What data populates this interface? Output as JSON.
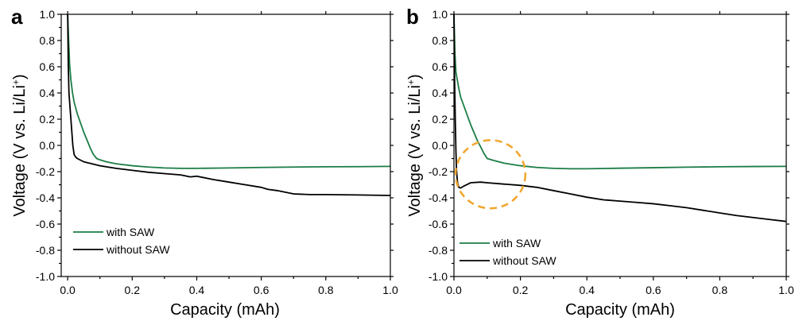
{
  "colors": {
    "with_saw": "#1b7d45",
    "without_saw": "#000000",
    "highlight": "#f0a830"
  },
  "chart_data": [
    {
      "panel": "a",
      "type": "line",
      "xlabel": "Capacity (mAh)",
      "ylabel_main": "Voltage (V vs. Li/Li",
      "ylabel_sup": "+",
      "ylabel_tail": ")",
      "xlim": [
        -0.02,
        1.0
      ],
      "ylim": [
        -1.0,
        1.0
      ],
      "xticks": [
        0.0,
        0.2,
        0.4,
        0.6,
        0.8,
        1.0
      ],
      "xtick_labels": [
        "0.0",
        "0.2",
        "0.4",
        "0.6",
        "0.8",
        "1.0"
      ],
      "yticks": [
        -1.0,
        -0.8,
        -0.6,
        -0.4,
        -0.2,
        0.0,
        0.2,
        0.4,
        0.6,
        0.8,
        1.0
      ],
      "ytick_labels": [
        "-1.0",
        "-0.8",
        "-0.6",
        "-0.4",
        "-0.2",
        "0.0",
        "0.2",
        "0.4",
        "0.6",
        "0.8",
        "1.0"
      ],
      "legend_position": "bottom-left",
      "series": [
        {
          "name": "with SAW",
          "color_key": "with_saw",
          "x": [
            0.0,
            0.003,
            0.006,
            0.01,
            0.015,
            0.02,
            0.03,
            0.04,
            0.05,
            0.06,
            0.07,
            0.08,
            0.09,
            0.1,
            0.12,
            0.15,
            0.2,
            0.25,
            0.3,
            0.35,
            0.4,
            0.5,
            0.6,
            0.7,
            0.8,
            0.9,
            1.0
          ],
          "y": [
            1.0,
            0.8,
            0.62,
            0.5,
            0.4,
            0.33,
            0.24,
            0.17,
            0.1,
            0.04,
            -0.02,
            -0.07,
            -0.1,
            -0.11,
            -0.125,
            -0.14,
            -0.155,
            -0.165,
            -0.172,
            -0.175,
            -0.175,
            -0.172,
            -0.168,
            -0.165,
            -0.163,
            -0.162,
            -0.16
          ]
        },
        {
          "name": "without SAW",
          "color_key": "without_saw",
          "x": [
            0.0,
            0.002,
            0.004,
            0.007,
            0.01,
            0.013,
            0.016,
            0.02,
            0.025,
            0.03,
            0.05,
            0.1,
            0.15,
            0.2,
            0.25,
            0.3,
            0.35,
            0.38,
            0.4,
            0.45,
            0.5,
            0.55,
            0.6,
            0.62,
            0.65,
            0.7,
            0.75,
            0.8,
            0.9,
            1.0
          ],
          "y": [
            1.0,
            0.6,
            0.4,
            0.3,
            0.2,
            0.1,
            0.0,
            -0.07,
            -0.09,
            -0.1,
            -0.125,
            -0.155,
            -0.175,
            -0.19,
            -0.205,
            -0.215,
            -0.225,
            -0.24,
            -0.235,
            -0.26,
            -0.28,
            -0.3,
            -0.32,
            -0.335,
            -0.345,
            -0.37,
            -0.375,
            -0.375,
            -0.378,
            -0.382
          ]
        }
      ]
    },
    {
      "panel": "b",
      "type": "line",
      "xlabel": "Capacity (mAh)",
      "ylabel_main": "Voltage (V vs. Li/Li",
      "ylabel_sup": "+",
      "ylabel_tail": ")",
      "xlim": [
        0.0,
        1.0
      ],
      "ylim": [
        -1.0,
        1.0
      ],
      "xticks": [
        0.0,
        0.2,
        0.4,
        0.6,
        0.8,
        1.0
      ],
      "xtick_labels": [
        "0.0",
        "0.2",
        "0.4",
        "0.6",
        "0.8",
        "1.0"
      ],
      "yticks": [
        -1.0,
        -0.8,
        -0.6,
        -0.4,
        -0.2,
        0.0,
        0.2,
        0.4,
        0.6,
        0.8,
        1.0
      ],
      "ytick_labels": [
        "-1.0",
        "-0.8",
        "-0.6",
        "-0.4",
        "-0.2",
        "0.0",
        "0.2",
        "0.4",
        "0.6",
        "0.8",
        "1.0"
      ],
      "legend_position": "bottom-left",
      "annotation": {
        "shape": "dashed-circle",
        "center": [
          0.11,
          -0.22
        ],
        "radius_x_data": 0.105,
        "radius_y_data": 0.26
      },
      "series": [
        {
          "name": "with SAW",
          "color_key": "with_saw",
          "x": [
            0.0,
            0.003,
            0.006,
            0.01,
            0.015,
            0.02,
            0.03,
            0.04,
            0.05,
            0.06,
            0.07,
            0.08,
            0.09,
            0.1,
            0.12,
            0.15,
            0.2,
            0.25,
            0.3,
            0.35,
            0.4,
            0.5,
            0.6,
            0.7,
            0.8,
            0.9,
            1.0
          ],
          "y": [
            1.0,
            0.7,
            0.56,
            0.5,
            0.43,
            0.37,
            0.3,
            0.23,
            0.16,
            0.1,
            0.04,
            -0.01,
            -0.06,
            -0.1,
            -0.115,
            -0.135,
            -0.155,
            -0.168,
            -0.175,
            -0.178,
            -0.178,
            -0.174,
            -0.17,
            -0.166,
            -0.163,
            -0.161,
            -0.16
          ]
        },
        {
          "name": "without SAW",
          "color_key": "without_saw",
          "x": [
            0.0,
            0.002,
            0.004,
            0.006,
            0.008,
            0.011,
            0.015,
            0.02,
            0.03,
            0.05,
            0.08,
            0.1,
            0.15,
            0.2,
            0.25,
            0.3,
            0.35,
            0.4,
            0.45,
            0.5,
            0.55,
            0.6,
            0.65,
            0.7,
            0.75,
            0.8,
            0.85,
            0.9,
            0.95,
            1.0
          ],
          "y": [
            1.0,
            0.5,
            0.2,
            -0.05,
            -0.2,
            -0.29,
            -0.32,
            -0.325,
            -0.31,
            -0.285,
            -0.28,
            -0.285,
            -0.295,
            -0.305,
            -0.32,
            -0.345,
            -0.37,
            -0.395,
            -0.415,
            -0.425,
            -0.435,
            -0.445,
            -0.46,
            -0.475,
            -0.495,
            -0.515,
            -0.535,
            -0.55,
            -0.565,
            -0.58
          ]
        }
      ]
    }
  ]
}
